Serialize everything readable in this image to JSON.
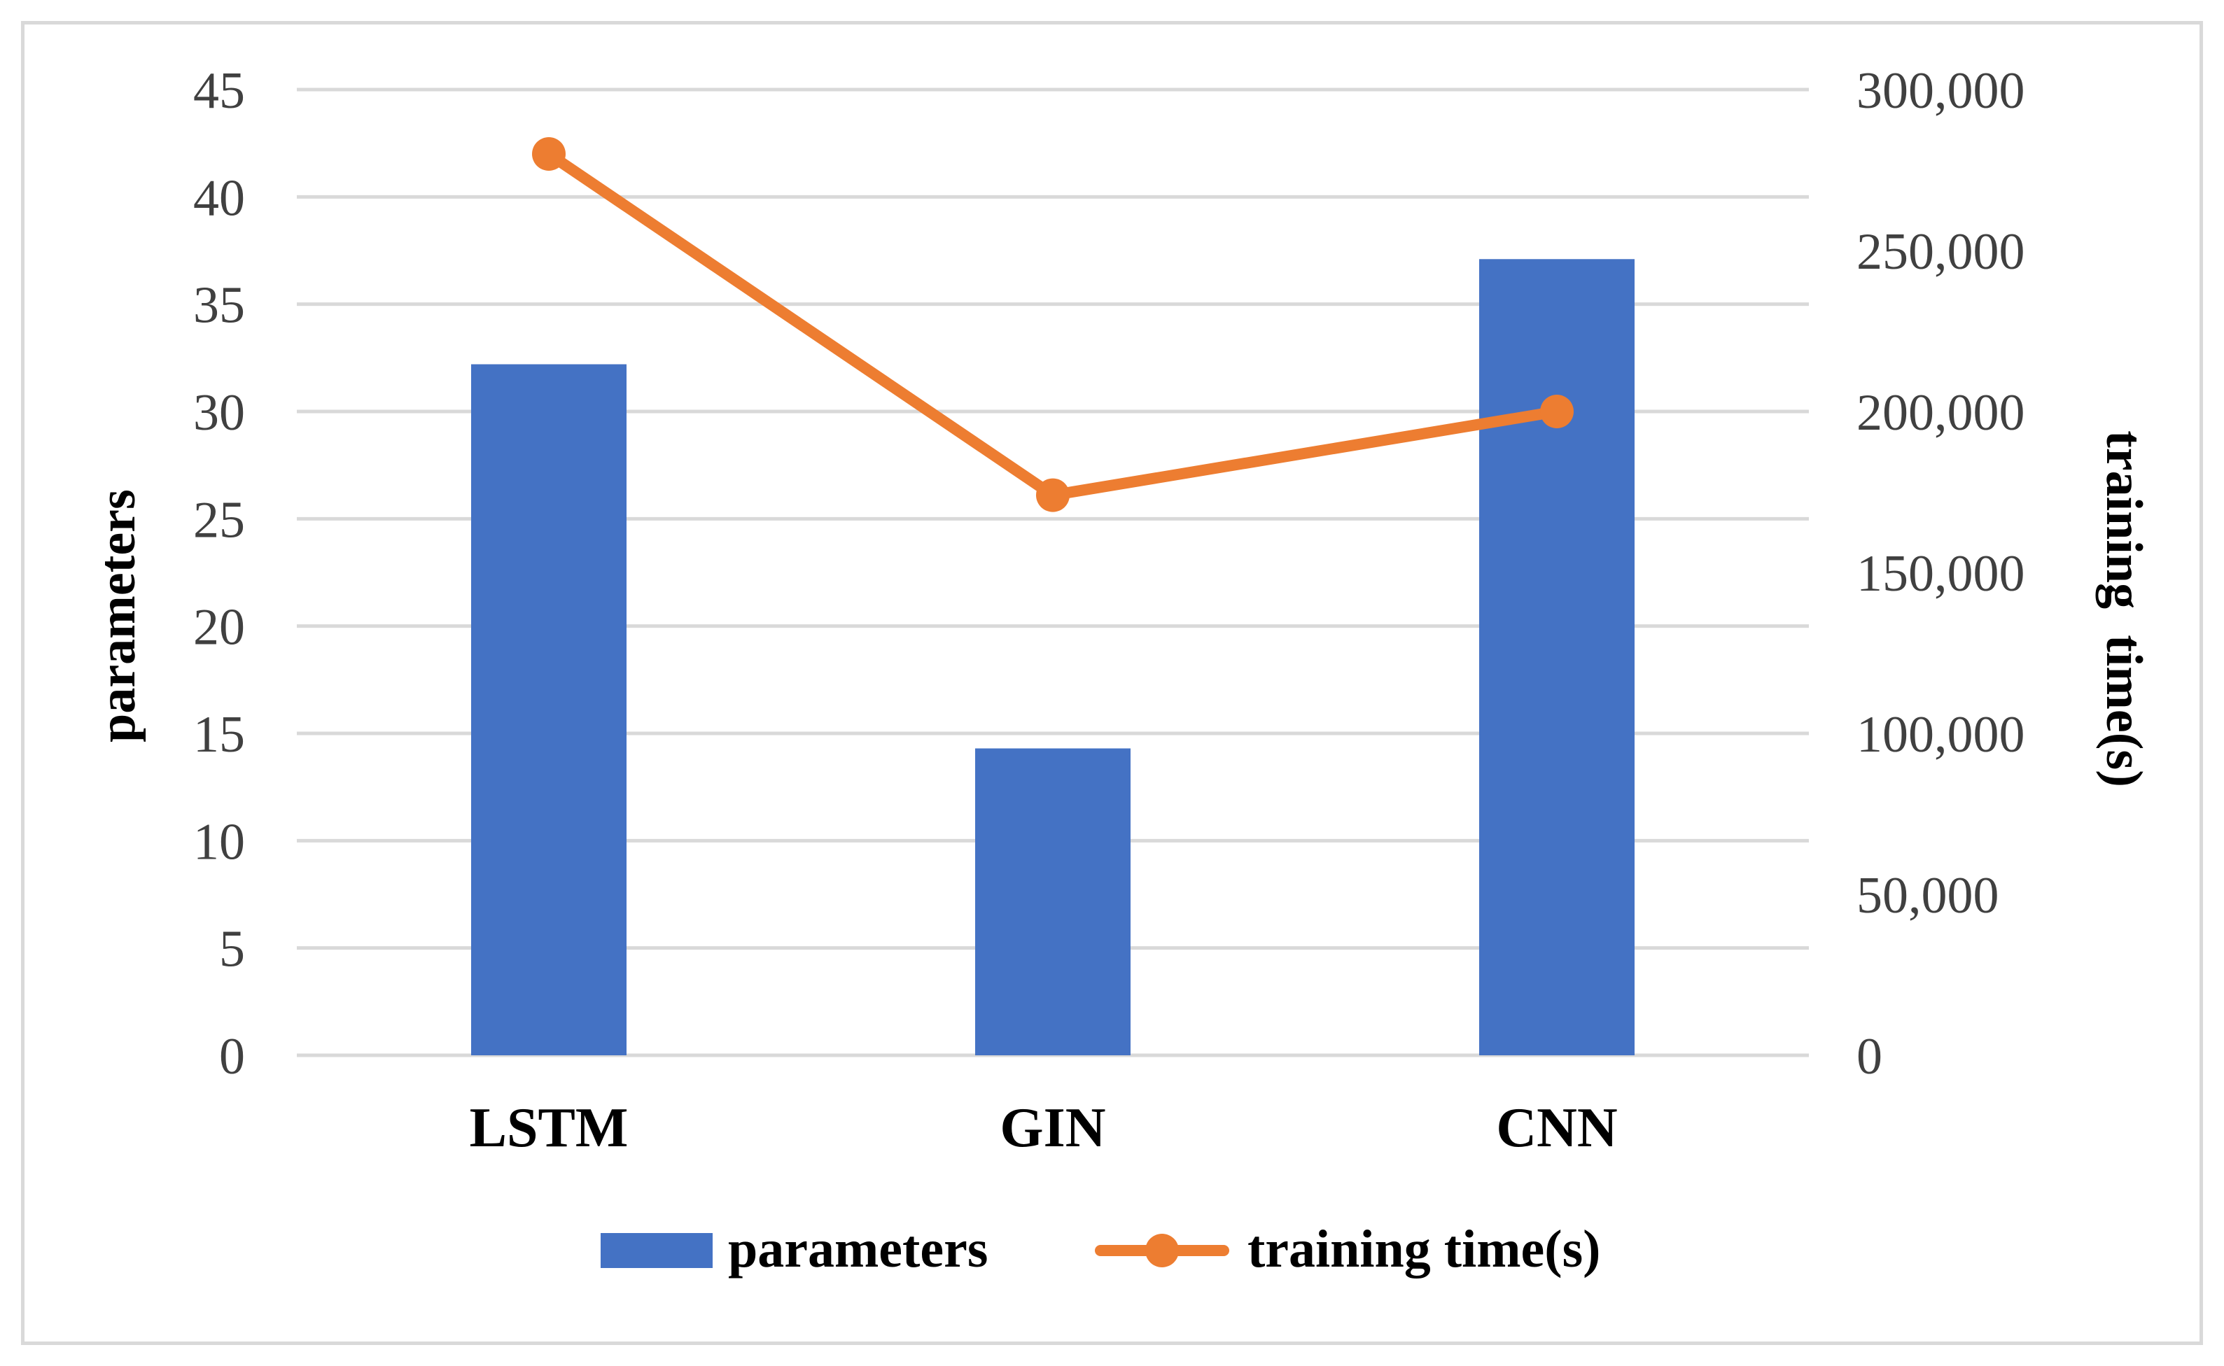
{
  "chart_data": {
    "type": "bar+line",
    "categories": [
      "LSTM",
      "GIN",
      "CNN"
    ],
    "series": [
      {
        "name": "parameters",
        "type": "bar",
        "axis": "left",
        "values": [
          32.2,
          14.3,
          37.1
        ],
        "color": "#4472C4"
      },
      {
        "name": "training time(s)",
        "type": "line",
        "axis": "right",
        "values": [
          280000,
          174000,
          200000
        ],
        "color": "#ED7D31"
      }
    ],
    "ylabel_left": "parameters",
    "ylabel_right": "training  time(s)",
    "ylim_left": [
      0,
      45
    ],
    "ylim_right": [
      0,
      300000
    ],
    "yticks_left": [
      "0",
      "5",
      "10",
      "15",
      "20",
      "25",
      "30",
      "35",
      "40",
      "45"
    ],
    "yticks_right": [
      "0",
      "50,000",
      "100,000",
      "150,000",
      "200,000",
      "250,000",
      "300,000"
    ],
    "grid": true,
    "legend_position": "bottom",
    "legend": [
      {
        "label": "parameters",
        "kind": "bar"
      },
      {
        "label": "training time(s)",
        "kind": "line"
      }
    ],
    "colors": {
      "grid": "#d9d9d9",
      "frame": "#d9d9d9",
      "tick_text": "#404040"
    }
  }
}
